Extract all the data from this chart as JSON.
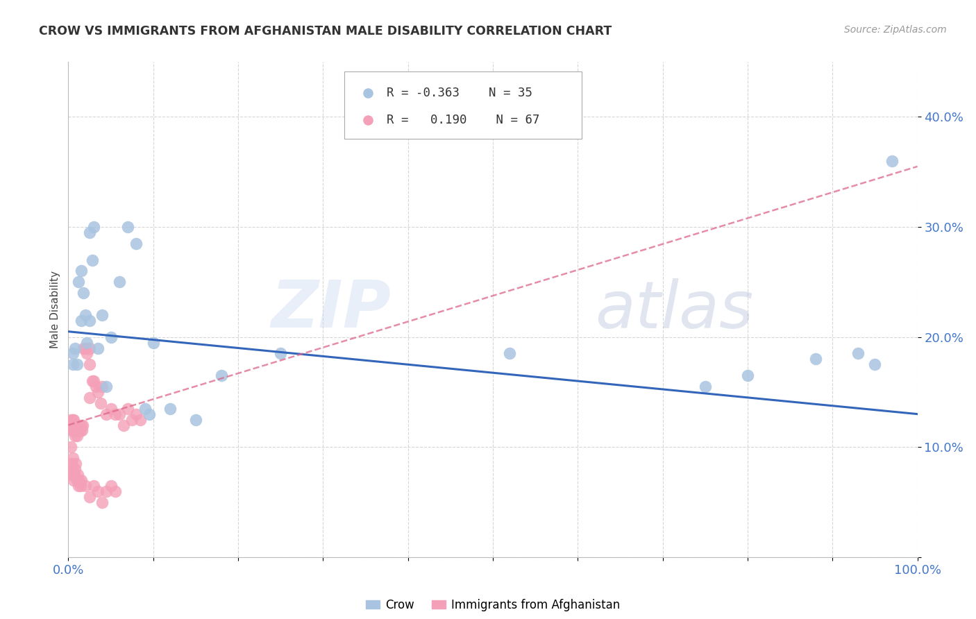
{
  "title": "CROW VS IMMIGRANTS FROM AFGHANISTAN MALE DISABILITY CORRELATION CHART",
  "source": "Source: ZipAtlas.com",
  "ylabel": "Male Disability",
  "xlim": [
    0,
    1.0
  ],
  "ylim": [
    0.0,
    0.45
  ],
  "yticks": [
    0.0,
    0.1,
    0.2,
    0.3,
    0.4
  ],
  "ytick_labels": [
    "",
    "10.0%",
    "20.0%",
    "30.0%",
    "40.0%"
  ],
  "xticks": [
    0.0,
    0.1,
    0.2,
    0.3,
    0.4,
    0.5,
    0.6,
    0.7,
    0.8,
    0.9,
    1.0
  ],
  "xtick_labels": [
    "0.0%",
    "",
    "",
    "",
    "",
    "",
    "",
    "",
    "",
    "",
    "100.0%"
  ],
  "legend_blue_r": "-0.363",
  "legend_blue_n": "35",
  "legend_pink_r": "0.190",
  "legend_pink_n": "67",
  "blue_scatter_color": "#a8c4e0",
  "pink_scatter_color": "#f4a0b8",
  "blue_line_color": "#3366bb",
  "pink_line_color": "#dd6688",
  "watermark_zip": "ZIP",
  "watermark_atlas": "atlas",
  "crow_x": [
    0.005,
    0.005,
    0.008,
    0.01,
    0.012,
    0.015,
    0.015,
    0.018,
    0.02,
    0.022,
    0.025,
    0.025,
    0.028,
    0.03,
    0.035,
    0.04,
    0.045,
    0.05,
    0.06,
    0.07,
    0.08,
    0.09,
    0.095,
    0.1,
    0.12,
    0.15,
    0.18,
    0.25,
    0.52,
    0.75,
    0.8,
    0.88,
    0.93,
    0.95,
    0.97
  ],
  "crow_y": [
    0.175,
    0.185,
    0.19,
    0.175,
    0.25,
    0.26,
    0.215,
    0.24,
    0.22,
    0.195,
    0.215,
    0.295,
    0.27,
    0.3,
    0.19,
    0.22,
    0.155,
    0.2,
    0.25,
    0.3,
    0.285,
    0.135,
    0.13,
    0.195,
    0.135,
    0.125,
    0.165,
    0.185,
    0.185,
    0.155,
    0.165,
    0.18,
    0.185,
    0.175,
    0.36
  ],
  "afg_x": [
    0.002,
    0.003,
    0.003,
    0.004,
    0.004,
    0.005,
    0.005,
    0.005,
    0.006,
    0.006,
    0.007,
    0.007,
    0.008,
    0.008,
    0.009,
    0.009,
    0.01,
    0.01,
    0.012,
    0.013,
    0.014,
    0.015,
    0.016,
    0.017,
    0.018,
    0.02,
    0.022,
    0.025,
    0.025,
    0.025,
    0.028,
    0.03,
    0.032,
    0.035,
    0.038,
    0.04,
    0.045,
    0.05,
    0.055,
    0.06,
    0.065,
    0.07,
    0.075,
    0.08,
    0.085,
    0.002,
    0.003,
    0.004,
    0.005,
    0.006,
    0.007,
    0.008,
    0.009,
    0.01,
    0.011,
    0.012,
    0.013,
    0.014,
    0.015,
    0.02,
    0.025,
    0.03,
    0.035,
    0.04,
    0.045,
    0.05,
    0.055
  ],
  "afg_y": [
    0.12,
    0.125,
    0.1,
    0.115,
    0.12,
    0.115,
    0.12,
    0.125,
    0.12,
    0.125,
    0.115,
    0.12,
    0.11,
    0.115,
    0.115,
    0.12,
    0.11,
    0.115,
    0.115,
    0.115,
    0.115,
    0.12,
    0.115,
    0.12,
    0.19,
    0.19,
    0.185,
    0.175,
    0.145,
    0.19,
    0.16,
    0.16,
    0.155,
    0.15,
    0.14,
    0.155,
    0.13,
    0.135,
    0.13,
    0.13,
    0.12,
    0.135,
    0.125,
    0.13,
    0.125,
    0.08,
    0.075,
    0.085,
    0.09,
    0.07,
    0.075,
    0.08,
    0.085,
    0.07,
    0.075,
    0.065,
    0.07,
    0.065,
    0.07,
    0.065,
    0.055,
    0.065,
    0.06,
    0.05,
    0.06,
    0.065,
    0.06
  ],
  "blue_line_x0": 0.0,
  "blue_line_y0": 0.205,
  "blue_line_x1": 1.0,
  "blue_line_y1": 0.13,
  "pink_line_x0": 0.0,
  "pink_line_y0": 0.12,
  "pink_line_x1": 1.0,
  "pink_line_y1": 0.355
}
